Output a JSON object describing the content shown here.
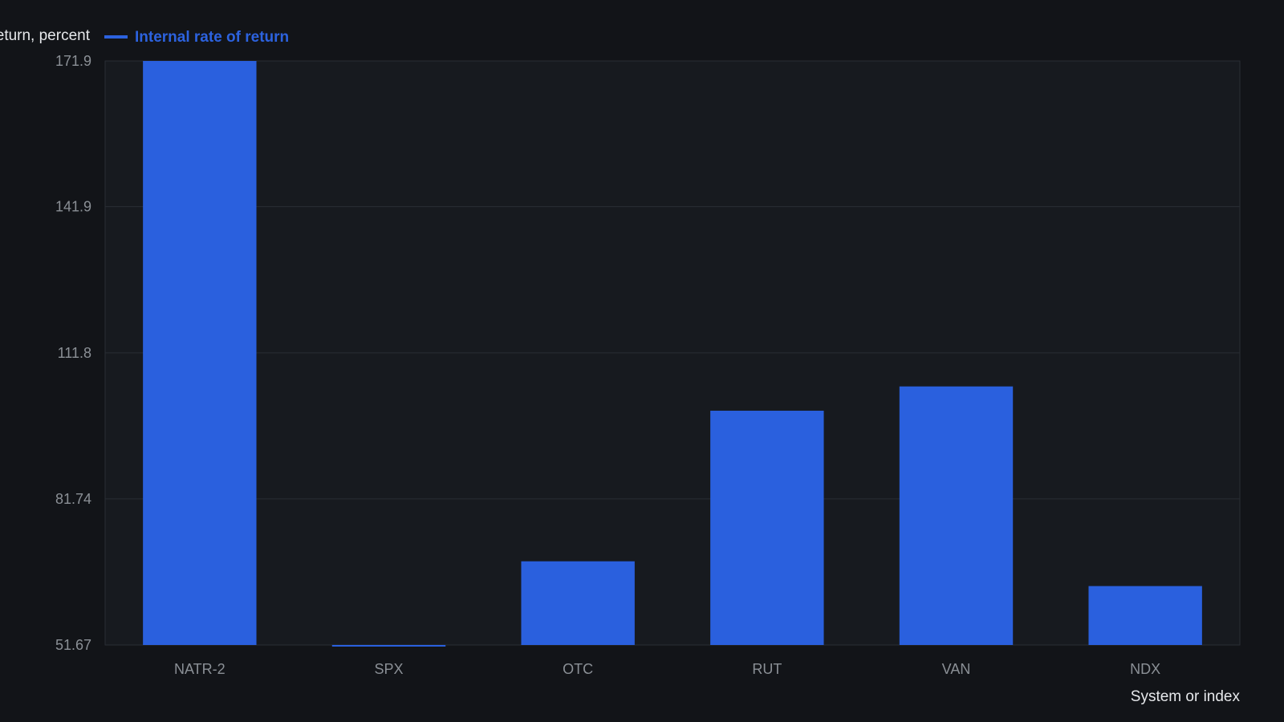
{
  "chart_data": {
    "type": "bar",
    "title": "",
    "xlabel": "System or index",
    "ylabel": "Internal rate of return, percent",
    "legend": {
      "position": "top-left",
      "entries": [
        "Internal rate of return"
      ]
    },
    "categories": [
      "NATR-2",
      "SPX",
      "OTC",
      "RUT",
      "VAN",
      "NDX"
    ],
    "series": [
      {
        "name": "Internal rate of return",
        "values": [
          171.9,
          51.4,
          68.9,
          99.9,
          104.9,
          63.8
        ]
      }
    ],
    "ylim": [
      51.67,
      171.9
    ],
    "yticks": [
      "51.67",
      "81.74",
      "111.8",
      "141.9",
      "171.9"
    ],
    "grid": true,
    "colors": {
      "bar": "#2a60de",
      "background": "#121418",
      "plot_background": "#171a1f",
      "grid": "#2a2e35",
      "tick_text": "#8b9096",
      "axis_title": "#e6e8eb",
      "legend_text": "#2c62de"
    }
  }
}
